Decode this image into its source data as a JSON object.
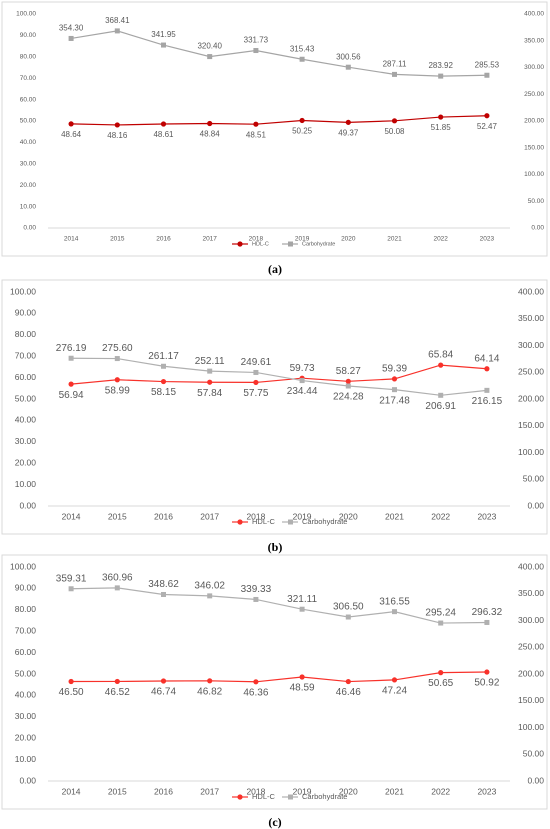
{
  "chart_data": [
    {
      "type": "line",
      "caption": "(a)",
      "categories": [
        "2014",
        "2015",
        "2016",
        "2017",
        "2018",
        "2019",
        "2020",
        "2021",
        "2022",
        "2023"
      ],
      "ylim": [
        0,
        100
      ],
      "yticks": [
        {
          "value": 0,
          "label": "0.00"
        },
        {
          "value": 10,
          "label": "10.00"
        },
        {
          "value": 20,
          "label": "20.00"
        },
        {
          "value": 30,
          "label": "30.00"
        },
        {
          "value": 40,
          "label": "40.00"
        },
        {
          "value": 50,
          "label": "50.00"
        },
        {
          "value": 60,
          "label": "60.00"
        },
        {
          "value": 70,
          "label": "70.00"
        },
        {
          "value": 80,
          "label": "80.00"
        },
        {
          "value": 90,
          "label": "90.00"
        },
        {
          "value": 100,
          "label": "100.00"
        }
      ],
      "y2lim": [
        0,
        400
      ],
      "y2ticks": [
        {
          "value": 0,
          "label": "0.00"
        },
        {
          "value": 50,
          "label": "50.00"
        },
        {
          "value": 100,
          "label": "100.00"
        },
        {
          "value": 150,
          "label": "150.00"
        },
        {
          "value": 200,
          "label": "200.00"
        },
        {
          "value": 250,
          "label": "250.00"
        },
        {
          "value": 300,
          "label": "300.00"
        },
        {
          "value": 350,
          "label": "350.00"
        },
        {
          "value": 400,
          "label": "400.00"
        }
      ],
      "series": [
        {
          "name": "HDL-C",
          "color": "#c00000",
          "label_color": "#c00000",
          "values": [
            48.64,
            48.16,
            48.61,
            48.84,
            48.51,
            50.25,
            49.37,
            50.08,
            51.85,
            52.47
          ],
          "value_labels": [
            "48.64",
            "48.16",
            "48.61",
            "48.84",
            "48.51",
            "50.25",
            "49.37",
            "50.08",
            "51.85",
            "52.47"
          ]
        },
        {
          "name": "Carbohydrate",
          "color": "#a5a5a5",
          "label_color": "#9b4fc4",
          "axis": "y2",
          "values": [
            354.3,
            368.41,
            341.95,
            320.4,
            331.73,
            315.43,
            300.56,
            287.11,
            283.92,
            285.53
          ],
          "value_labels": [
            "354.30",
            "368.41",
            "341.95",
            "320.40",
            "331.73",
            "315.43",
            "300.56",
            "287.11",
            "283.92",
            "285.53"
          ]
        }
      ]
    },
    {
      "type": "line",
      "caption": "(b)",
      "categories": [
        "2014",
        "2015",
        "2016",
        "2017",
        "2018",
        "2019",
        "2020",
        "2021",
        "2022",
        "2023"
      ],
      "ylim": [
        0,
        100
      ],
      "yticks": [
        {
          "value": 0,
          "label": "0.00"
        },
        {
          "value": 10,
          "label": "10.00"
        },
        {
          "value": 20,
          "label": "20.00"
        },
        {
          "value": 30,
          "label": "30.00"
        },
        {
          "value": 40,
          "label": "40.00"
        },
        {
          "value": 50,
          "label": "50.00"
        },
        {
          "value": 60,
          "label": "60.00"
        },
        {
          "value": 70,
          "label": "70.00"
        },
        {
          "value": 80,
          "label": "80.00"
        },
        {
          "value": 90,
          "label": "90.00"
        },
        {
          "value": 100,
          "label": "100.00"
        }
      ],
      "y2lim": [
        0,
        400
      ],
      "y2ticks": [
        {
          "value": 0,
          "label": "0.00"
        },
        {
          "value": 50,
          "label": "50.00"
        },
        {
          "value": 100,
          "label": "100.00"
        },
        {
          "value": 150,
          "label": "150.00"
        },
        {
          "value": 200,
          "label": "200.00"
        },
        {
          "value": 250,
          "label": "250.00"
        },
        {
          "value": 300,
          "label": "300.00"
        },
        {
          "value": 350,
          "label": "350.00"
        },
        {
          "value": 400,
          "label": "400.00"
        }
      ],
      "series": [
        {
          "name": "HDL-C",
          "color": "#f8312a",
          "label_color": "#404040",
          "values": [
            56.94,
            58.99,
            58.15,
            57.84,
            57.75,
            59.73,
            58.27,
            59.39,
            65.84,
            64.14
          ],
          "value_labels": [
            "56.94",
            "58.99",
            "58.15",
            "57.84",
            "57.75",
            "59.73",
            "58.27",
            "59.39",
            "65.84",
            "64.14"
          ]
        },
        {
          "name": "Carbohydrate",
          "color": "#b0b0b0",
          "label_color": "#404040",
          "axis": "y2",
          "values": [
            276.19,
            275.6,
            261.17,
            252.11,
            249.61,
            234.44,
            224.28,
            217.48,
            206.91,
            216.15
          ],
          "value_labels": [
            "276.19",
            "275.60",
            "261.17",
            "252.11",
            "249.61",
            "234.44",
            "224.28",
            "217.48",
            "206.91",
            "216.15"
          ]
        }
      ]
    },
    {
      "type": "line",
      "caption": "(c)",
      "categories": [
        "2014",
        "2015",
        "2016",
        "2017",
        "2018",
        "2019",
        "2020",
        "2021",
        "2022",
        "2023"
      ],
      "ylim": [
        0,
        100
      ],
      "yticks": [
        {
          "value": 0,
          "label": "0.00"
        },
        {
          "value": 10,
          "label": "10.00"
        },
        {
          "value": 20,
          "label": "20.00"
        },
        {
          "value": 30,
          "label": "30.00"
        },
        {
          "value": 40,
          "label": "40.00"
        },
        {
          "value": 50,
          "label": "50.00"
        },
        {
          "value": 60,
          "label": "60.00"
        },
        {
          "value": 70,
          "label": "70.00"
        },
        {
          "value": 80,
          "label": "80.00"
        },
        {
          "value": 90,
          "label": "90.00"
        },
        {
          "value": 100,
          "label": "100.00"
        }
      ],
      "y2lim": [
        0,
        400
      ],
      "y2ticks": [
        {
          "value": 0,
          "label": "0.00"
        },
        {
          "value": 50,
          "label": "50.00"
        },
        {
          "value": 100,
          "label": "100.00"
        },
        {
          "value": 150,
          "label": "150.00"
        },
        {
          "value": 200,
          "label": "200.00"
        },
        {
          "value": 250,
          "label": "250.00"
        },
        {
          "value": 300,
          "label": "300.00"
        },
        {
          "value": 350,
          "label": "350.00"
        },
        {
          "value": 400,
          "label": "400.00"
        }
      ],
      "series": [
        {
          "name": "HDL-C",
          "color": "#f8312a",
          "label_color": "#404040",
          "values": [
            46.5,
            46.52,
            46.74,
            46.82,
            46.36,
            48.59,
            46.46,
            47.24,
            50.65,
            50.92
          ],
          "value_labels": [
            "46.50",
            "46.52",
            "46.74",
            "46.82",
            "46.36",
            "48.59",
            "46.46",
            "47.24",
            "50.65",
            "50.92"
          ]
        },
        {
          "name": "Carbohydrate",
          "color": "#b0b0b0",
          "label_color": "#404040",
          "axis": "y2",
          "values": [
            359.31,
            360.96,
            348.62,
            346.02,
            339.33,
            321.11,
            306.5,
            316.55,
            295.24,
            296.32
          ],
          "value_labels": [
            "359.31",
            "360.96",
            "348.62",
            "346.02",
            "339.33",
            "321.11",
            "306.50",
            "316.55",
            "295.24",
            "296.32"
          ]
        }
      ]
    }
  ]
}
